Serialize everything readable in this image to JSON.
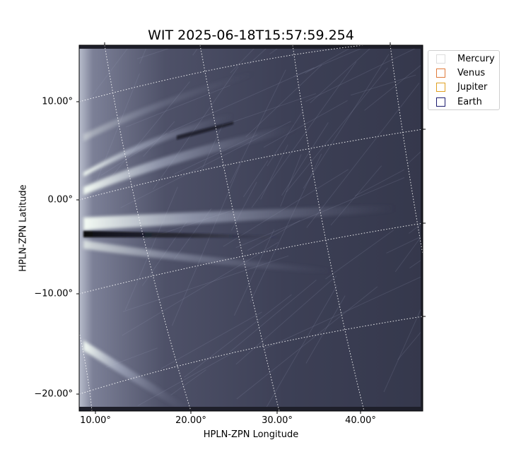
{
  "title": "WIT 2025-06-18T15:57:59.254",
  "xlabel": "HPLN-ZPN Longitude",
  "ylabel": "HPLN-ZPN Latitude",
  "x_ticks": [
    "10.00°",
    "20.00°",
    "30.00°",
    "40.00°"
  ],
  "y_ticks": [
    "10.00°",
    "0.00°",
    "−10.00°",
    "−20.00°"
  ],
  "legend": [
    {
      "label": "Mercury",
      "color": "#dddddd"
    },
    {
      "label": "Venus",
      "color": "#e07a3a"
    },
    {
      "label": "Jupiter",
      "color": "#e0a020"
    },
    {
      "label": "Earth",
      "color": "#1a1a6e"
    }
  ],
  "colors": {
    "background": "#ffffff",
    "image_dark": "#33364a",
    "image_mid": "#8a8ea8",
    "image_bright": "#eef4ee",
    "grid": "#ffffff"
  }
}
